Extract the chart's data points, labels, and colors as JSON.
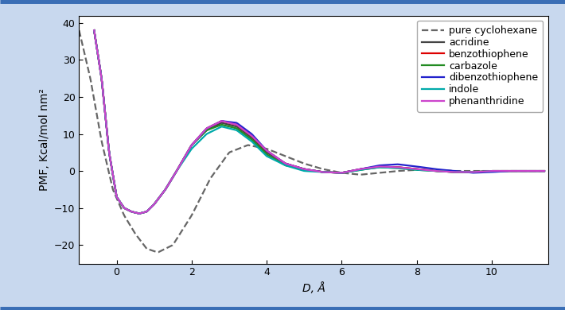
{
  "xlabel": "D, Å",
  "ylabel": "PMF, Kcal/mol nm²",
  "xlim": [
    -1.0,
    11.5
  ],
  "ylim": [
    -25,
    42
  ],
  "yticks": [
    -20,
    -10,
    0,
    10,
    20,
    30,
    40
  ],
  "xticks": [
    0,
    2,
    4,
    6,
    8,
    10
  ],
  "fig_bg_color": "#c8d8ee",
  "plot_bg_color": "#ffffff",
  "border_color": "#3a6eb5",
  "series": [
    {
      "name": "pure cyclohexane",
      "color": "#666666",
      "linestyle": "--",
      "linewidth": 1.6,
      "x": [
        -1.0,
        -0.7,
        -0.4,
        -0.1,
        0.2,
        0.5,
        0.8,
        1.1,
        1.5,
        2.0,
        2.5,
        3.0,
        3.5,
        4.0,
        4.5,
        5.0,
        5.5,
        6.0,
        6.5,
        7.0,
        7.5,
        8.0,
        8.5,
        9.0,
        9.5,
        10.0,
        10.5,
        11.0,
        11.4
      ],
      "y": [
        38,
        25,
        8,
        -5,
        -12,
        -17,
        -21,
        -22,
        -20,
        -12,
        -2,
        5,
        7,
        6,
        4,
        2,
        0.5,
        -0.5,
        -1.0,
        -0.5,
        0,
        0.3,
        0.3,
        0,
        0,
        0,
        0,
        0,
        0
      ]
    },
    {
      "name": "acridine",
      "color": "#444444",
      "linestyle": "-",
      "linewidth": 1.6,
      "x": [
        -0.6,
        -0.4,
        -0.2,
        0.0,
        0.2,
        0.4,
        0.6,
        0.8,
        1.0,
        1.3,
        1.6,
        2.0,
        2.4,
        2.8,
        3.2,
        3.6,
        4.0,
        4.5,
        5.0,
        5.5,
        6.0,
        6.5,
        7.0,
        7.5,
        8.0,
        8.5,
        9.0,
        9.5,
        10.0,
        10.5,
        11.0,
        11.4
      ],
      "y": [
        38,
        25,
        5,
        -7,
        -10,
        -11,
        -11.5,
        -11,
        -9,
        -5,
        0,
        7,
        11,
        13,
        12,
        9,
        5,
        2,
        0.5,
        -0.3,
        -0.5,
        0.5,
        1.2,
        1.0,
        0.5,
        0.0,
        -0.3,
        -0.3,
        0,
        0,
        0,
        0
      ]
    },
    {
      "name": "benzothiophene",
      "color": "#dd0000",
      "linestyle": "-",
      "linewidth": 1.6,
      "x": [
        -0.6,
        -0.4,
        -0.2,
        0.0,
        0.2,
        0.4,
        0.6,
        0.8,
        1.0,
        1.3,
        1.6,
        2.0,
        2.4,
        2.8,
        3.2,
        3.6,
        4.0,
        4.5,
        5.0,
        5.5,
        6.0,
        6.5,
        7.0,
        7.5,
        8.0,
        8.5,
        9.0,
        9.5,
        10.0,
        10.5,
        11.0,
        11.4
      ],
      "y": [
        38,
        25,
        5,
        -7,
        -10,
        -11,
        -11.5,
        -11,
        -9,
        -5,
        0,
        7,
        11.5,
        13.5,
        12.5,
        9.5,
        5.5,
        2,
        0.5,
        -0.3,
        -0.5,
        0.5,
        1.2,
        1.0,
        0.5,
        0.0,
        -0.3,
        -0.3,
        0,
        0,
        0,
        0
      ]
    },
    {
      "name": "carbazole",
      "color": "#228B22",
      "linestyle": "-",
      "linewidth": 1.6,
      "x": [
        -0.6,
        -0.4,
        -0.2,
        0.0,
        0.2,
        0.4,
        0.6,
        0.8,
        1.0,
        1.3,
        1.6,
        2.0,
        2.4,
        2.8,
        3.2,
        3.6,
        4.0,
        4.5,
        5.0,
        5.5,
        6.0,
        6.5,
        7.0,
        7.5,
        8.0,
        8.5,
        9.0,
        9.5,
        10.0,
        10.5,
        11.0,
        11.4
      ],
      "y": [
        38,
        25,
        5,
        -7,
        -10,
        -11,
        -11.5,
        -11,
        -9,
        -5,
        0,
        7,
        11,
        12.5,
        11.5,
        8.5,
        4.5,
        1.5,
        0.5,
        -0.3,
        -0.5,
        0.3,
        1.0,
        0.8,
        0.3,
        0.0,
        -0.3,
        -0.3,
        0,
        0,
        0,
        0
      ]
    },
    {
      "name": "dibenzothiophene",
      "color": "#2222cc",
      "linestyle": "-",
      "linewidth": 1.6,
      "x": [
        -0.6,
        -0.4,
        -0.2,
        0.0,
        0.2,
        0.4,
        0.6,
        0.8,
        1.0,
        1.3,
        1.6,
        2.0,
        2.4,
        2.8,
        3.2,
        3.6,
        4.0,
        4.5,
        5.0,
        5.5,
        6.0,
        6.5,
        7.0,
        7.5,
        8.0,
        8.5,
        9.0,
        9.5,
        10.0,
        10.5,
        11.0,
        11.4
      ],
      "y": [
        38,
        25,
        5,
        -7,
        -10,
        -11,
        -11.5,
        -11,
        -9,
        -5,
        0,
        7,
        11.5,
        13.5,
        13.0,
        10.0,
        5.5,
        2,
        0.5,
        -0.3,
        -0.5,
        0.5,
        1.5,
        1.8,
        1.2,
        0.5,
        0.0,
        -0.5,
        -0.3,
        0,
        0,
        0
      ]
    },
    {
      "name": "indole",
      "color": "#00aaaa",
      "linestyle": "-",
      "linewidth": 1.6,
      "x": [
        -0.6,
        -0.4,
        -0.2,
        0.0,
        0.2,
        0.4,
        0.6,
        0.8,
        1.0,
        1.3,
        1.6,
        2.0,
        2.4,
        2.8,
        3.2,
        3.6,
        4.0,
        4.5,
        5.0,
        5.5,
        6.0,
        6.5,
        7.0,
        7.5,
        8.0,
        8.5,
        9.0,
        9.5,
        10.0,
        10.5,
        11.0,
        11.4
      ],
      "y": [
        38,
        25,
        5,
        -7,
        -10,
        -11,
        -11.5,
        -11,
        -9,
        -5,
        0,
        6,
        10,
        12,
        11,
        8,
        4,
        1.5,
        0,
        -0.3,
        -0.5,
        0.3,
        1.0,
        0.8,
        0.3,
        0.0,
        -0.3,
        -0.3,
        0,
        0,
        0,
        0
      ]
    },
    {
      "name": "phenanthridine",
      "color": "#cc44cc",
      "linestyle": "-",
      "linewidth": 1.6,
      "x": [
        -0.6,
        -0.4,
        -0.2,
        0.0,
        0.2,
        0.4,
        0.6,
        0.8,
        1.0,
        1.3,
        1.6,
        2.0,
        2.4,
        2.8,
        3.2,
        3.6,
        4.0,
        4.5,
        5.0,
        5.5,
        6.0,
        6.5,
        7.0,
        7.5,
        8.0,
        8.5,
        9.0,
        9.5,
        10.0,
        10.5,
        11.0,
        11.4
      ],
      "y": [
        38,
        25,
        5,
        -7,
        -10,
        -11,
        -11.5,
        -11,
        -9,
        -5,
        0,
        7,
        11.5,
        13.5,
        12.5,
        9.5,
        5.5,
        2,
        0.5,
        -0.3,
        -0.5,
        0.5,
        1.2,
        1.0,
        0.5,
        0.0,
        -0.3,
        -0.3,
        0,
        0,
        0,
        0
      ]
    }
  ],
  "legend_fontsize": 9,
  "axis_fontsize": 10,
  "tick_fontsize": 9
}
